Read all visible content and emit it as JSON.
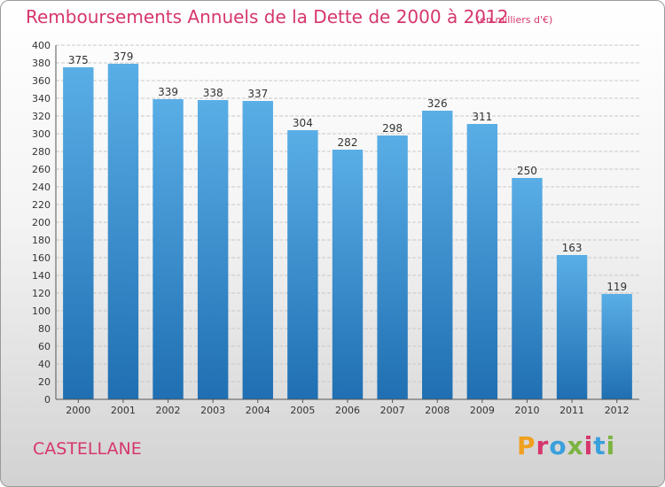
{
  "header": {
    "title": "Remboursements Annuels de la Dette de 2000 à 2012",
    "unit": "(en milliers d'€)"
  },
  "footer": {
    "place": "CASTELLANE",
    "brand": "Proxiti",
    "brand_colors": [
      "#f0a020",
      "#d6366e",
      "#3aa0dc",
      "#7cb342",
      "#d6366e",
      "#3aa0dc",
      "#7cb342"
    ]
  },
  "colors": {
    "bar_top": "#5aaee6",
    "bar_bottom": "#1f6fb2",
    "accent": "#d6366e",
    "grid": "#c8c8c8",
    "axis_text": "#333333"
  },
  "chart_data": {
    "type": "bar",
    "title": "Remboursements Annuels de la Dette de 2000 à 2012",
    "subtitle": "(en milliers d'€)",
    "xlabel": "",
    "ylabel": "",
    "categories": [
      "2000",
      "2001",
      "2002",
      "2003",
      "2004",
      "2005",
      "2006",
      "2007",
      "2008",
      "2009",
      "2010",
      "2011",
      "2012"
    ],
    "values": [
      375,
      379,
      339,
      338,
      337,
      304,
      282,
      298,
      326,
      311,
      250,
      163,
      119
    ],
    "ylim": [
      0,
      400
    ],
    "ytick_step": 20,
    "grid": true,
    "data_labels": true
  }
}
